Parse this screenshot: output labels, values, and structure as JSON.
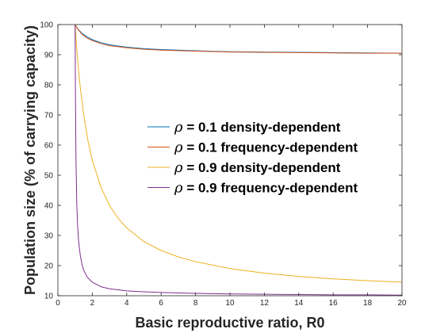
{
  "chart_data": {
    "type": "line",
    "title": "",
    "xlabel": "Basic reproductive ratio, R0",
    "ylabel": "Population size (% of carrying capacity)",
    "xlim": [
      0,
      20
    ],
    "ylim": [
      10,
      100
    ],
    "xticks": [
      0,
      2,
      4,
      6,
      8,
      10,
      12,
      14,
      16,
      18,
      20
    ],
    "yticks": [
      10,
      20,
      30,
      40,
      50,
      60,
      70,
      80,
      90,
      100
    ],
    "grid": false,
    "legend_position": "center-right",
    "series": [
      {
        "name": "ρ = 0.1 density-dependent",
        "legend_symbol": "ρ",
        "legend_text": " = 0.1 density-dependent",
        "color": "#0072BD",
        "x": [
          1,
          1.05,
          1.1,
          1.2,
          1.4,
          1.7,
          2,
          2.5,
          3,
          4,
          5,
          6,
          8,
          10,
          12,
          14,
          16,
          18,
          20
        ],
        "y": [
          100,
          99.5,
          99.1,
          98.3,
          97.1,
          95.9,
          95.0,
          94.0,
          93.3,
          92.5,
          92.0,
          91.7,
          91.3,
          91.0,
          90.9,
          90.8,
          90.7,
          90.6,
          90.5
        ]
      },
      {
        "name": "ρ = 0.1 frequency-dependent",
        "legend_symbol": "ρ",
        "legend_text": " = 0.1 frequency-dependent",
        "color": "#D95319",
        "x": [
          1,
          1.05,
          1.1,
          1.2,
          1.4,
          1.7,
          2,
          2.5,
          3,
          4,
          5,
          6,
          8,
          10,
          12,
          14,
          16,
          18,
          20
        ],
        "y": [
          100,
          99.5,
          99.0,
          98.2,
          96.8,
          95.5,
          94.7,
          93.7,
          93.0,
          92.3,
          91.8,
          91.5,
          91.2,
          90.9,
          90.8,
          90.7,
          90.6,
          90.5,
          90.5
        ]
      },
      {
        "name": "ρ = 0.9 density-dependent",
        "legend_symbol": "ρ",
        "legend_text": " = 0.9 density-dependent",
        "color": "#EDB120",
        "x": [
          1,
          1.1,
          1.2,
          1.3,
          1.5,
          1.75,
          2,
          2.5,
          3,
          3.5,
          4,
          5,
          6,
          7,
          8,
          10,
          12,
          14,
          16,
          18,
          20
        ],
        "y": [
          100,
          91.8,
          85.0,
          79.2,
          70.0,
          61.4,
          55.0,
          46.0,
          40.0,
          35.7,
          32.5,
          28.0,
          25.0,
          22.9,
          21.3,
          19.0,
          17.5,
          16.4,
          15.6,
          15.0,
          14.5
        ]
      },
      {
        "name": "ρ = 0.9 frequency-dependent",
        "legend_symbol": "ρ",
        "legend_text": " = 0.9 frequency-dependent",
        "color": "#7E2F8E",
        "x": [
          1,
          1.02,
          1.05,
          1.1,
          1.15,
          1.2,
          1.3,
          1.4,
          1.5,
          1.7,
          2,
          2.5,
          3,
          4,
          5,
          6,
          8,
          10,
          12,
          14,
          16,
          18,
          20
        ],
        "y": [
          100,
          78,
          56,
          40,
          33,
          28.5,
          23.5,
          20.5,
          18.5,
          16.2,
          14.5,
          13.0,
          12.3,
          11.6,
          11.3,
          11.1,
          10.8,
          10.6,
          10.5,
          10.4,
          10.3,
          10.3,
          10.2
        ]
      }
    ]
  }
}
